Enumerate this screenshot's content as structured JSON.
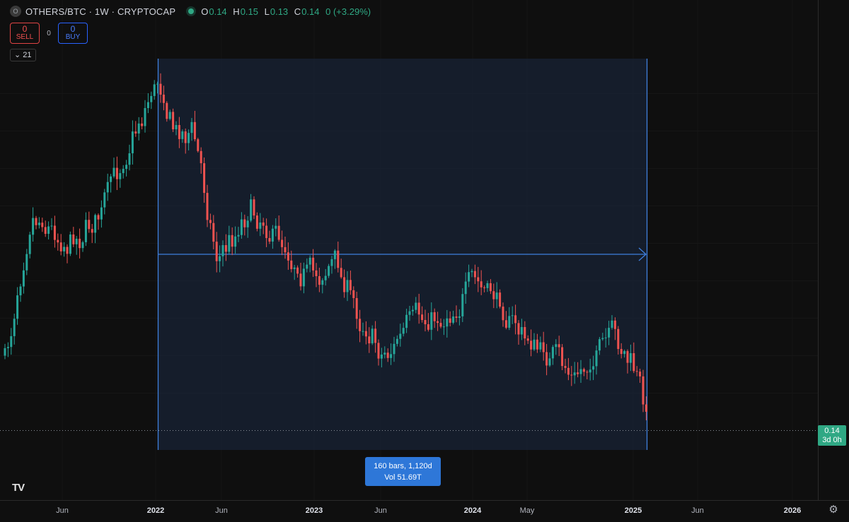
{
  "header": {
    "symbol_logo": "O",
    "symbol": "OTHERS/BTC · 1W · CRYPTOCAP",
    "live_dot_color": "#2fa884",
    "ohlc": {
      "o_label": "O",
      "o": "0.14",
      "h_label": "H",
      "h": "0.15",
      "l_label": "L",
      "l": "0.13",
      "c_label": "C",
      "c": "0.14",
      "change": "0 (+3.29%)"
    }
  },
  "trade": {
    "sell_count": "0",
    "sell_label": "SELL",
    "spread": "0",
    "buy_count": "0",
    "buy_label": "BUY"
  },
  "indicators_toggle": {
    "icon": "chevron-down-icon",
    "count": "21"
  },
  "measure": {
    "bars": "160 bars, 1,120d",
    "volume": "Vol 51.69T"
  },
  "price_badge": {
    "price": "0.14",
    "countdown": "3d 0h"
  },
  "branding": {
    "logo": "TV"
  },
  "settings": {
    "icon": "gear-icon"
  },
  "colors": {
    "up": "#26a69a",
    "down": "#ef5350",
    "background": "#0f0f0f",
    "measure": "#3f7fdc"
  },
  "chart_data": {
    "type": "candlestick",
    "interval": "1W",
    "x_axis_labels": [
      "Jun",
      "2022",
      "Jun",
      "2023",
      "Jun",
      "2024",
      "May",
      "2025",
      "Jun",
      "2026"
    ],
    "current_price": 0.14,
    "approx_close_trend": [
      {
        "x": "2021-04",
        "y": 0.18
      },
      {
        "x": "2021-05",
        "y": 0.26
      },
      {
        "x": "2021-06",
        "y": 0.24
      },
      {
        "x": "2021-08",
        "y": 0.25
      },
      {
        "x": "2021-10",
        "y": 0.29
      },
      {
        "x": "2021-12",
        "y": 0.32
      },
      {
        "x": "2022-01",
        "y": 0.33
      },
      {
        "x": "2022-02",
        "y": 0.3
      },
      {
        "x": "2022-04",
        "y": 0.3
      },
      {
        "x": "2022-06",
        "y": 0.23
      },
      {
        "x": "2022-08",
        "y": 0.26
      },
      {
        "x": "2022-10",
        "y": 0.24
      },
      {
        "x": "2022-12",
        "y": 0.22
      },
      {
        "x": "2023-02",
        "y": 0.23
      },
      {
        "x": "2023-04",
        "y": 0.2
      },
      {
        "x": "2023-06",
        "y": 0.18
      },
      {
        "x": "2023-08",
        "y": 0.2
      },
      {
        "x": "2023-10",
        "y": 0.2
      },
      {
        "x": "2024-01",
        "y": 0.22
      },
      {
        "x": "2024-03",
        "y": 0.21
      },
      {
        "x": "2024-05",
        "y": 0.19
      },
      {
        "x": "2024-07",
        "y": 0.18
      },
      {
        "x": "2024-09",
        "y": 0.17
      },
      {
        "x": "2024-11",
        "y": 0.19
      },
      {
        "x": "2024-12",
        "y": 0.17
      },
      {
        "x": "2025-02",
        "y": 0.14
      }
    ],
    "measurement": {
      "bars": 160,
      "days": 1120,
      "volume": "51.69T",
      "from": "2022-01",
      "to": "2025-02"
    }
  }
}
